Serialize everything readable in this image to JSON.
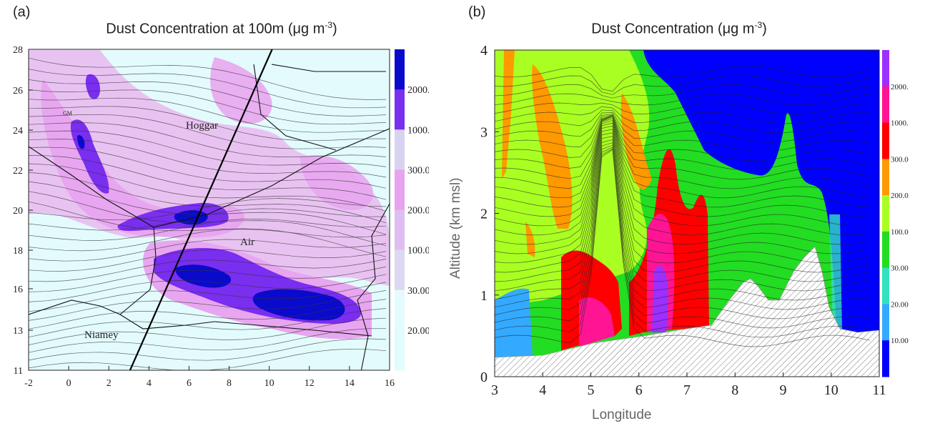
{
  "chart_data": [
    {
      "type": "heatmap",
      "panel_label": "(a)",
      "title_main": "Dust Concentration at 100m (μg m",
      "title_sup": "-3",
      "title_end": ")",
      "x_ticks": [
        -2,
        0,
        2,
        4,
        6,
        8,
        10,
        12,
        14,
        16
      ],
      "y_ticks": [
        11,
        13,
        16,
        18,
        20,
        22,
        24,
        26,
        28
      ],
      "xlim": [
        -2,
        16
      ],
      "ylim": [
        11,
        28
      ],
      "place_labels": [
        "GM",
        "Hoggar",
        "Air",
        "Niamey"
      ],
      "colorbar_labels": [
        "2000.",
        "1000.",
        "300.0",
        "200.0",
        "100.0",
        "30.00",
        "20.00"
      ],
      "colorbar_colors": [
        "#0a0acc",
        "#7a2ef0",
        "#d9d3f2",
        "#e7a3ef",
        "#e0bdf0",
        "#dcd8f3",
        "#e4fbfd",
        "#e0fcfd"
      ],
      "cross_section_line": {
        "x": [
          3.2,
          10.0
        ],
        "y": [
          11.0,
          28.0
        ]
      }
    },
    {
      "type": "heatmap",
      "panel_label": "(b)",
      "title_main": "Dust Concentration (μg m",
      "title_sup": "-3",
      "title_end": ")",
      "xlabel": "Longitude",
      "ylabel": "Altitude (km msl)",
      "x_ticks": [
        3,
        4,
        5,
        6,
        7,
        8,
        9,
        10,
        11
      ],
      "y_ticks": [
        0,
        1,
        2,
        3,
        4
      ],
      "xlim": [
        3,
        11
      ],
      "ylim": [
        0,
        4
      ],
      "colorbar_labels": [
        "2000.",
        "1000.",
        "300.0",
        "200.0",
        "100.0",
        "30.00",
        "20.00",
        "10.00"
      ],
      "colorbar_colors": [
        "#9b30ff",
        "#ff1493",
        "#ff0000",
        "#ff9900",
        "#aaff22",
        "#22dd22",
        "#33e0c0",
        "#33aaff",
        "#0000ff"
      ]
    }
  ]
}
